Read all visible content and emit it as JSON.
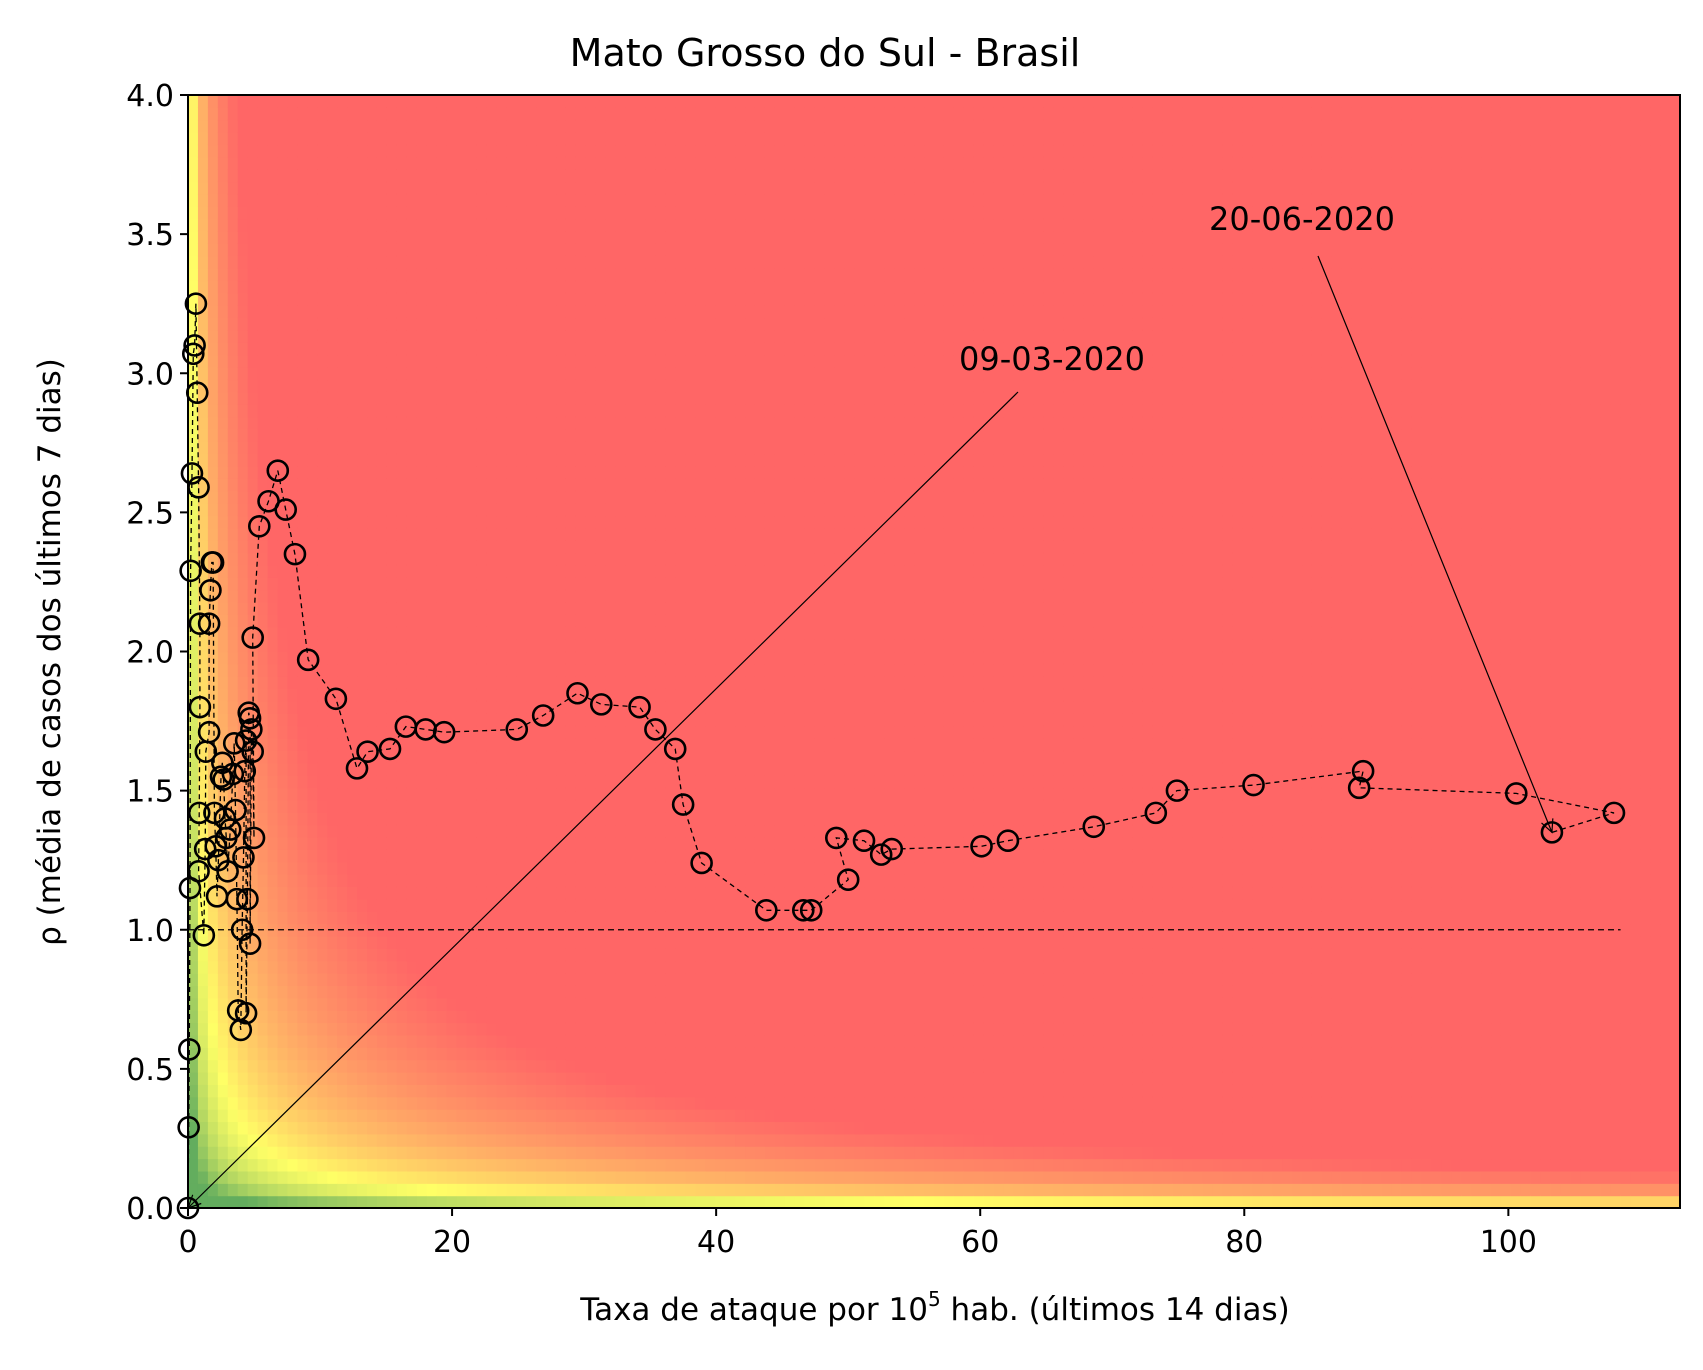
{
  "chart_data": {
    "type": "scatter",
    "title": "Mato Grosso do Sul - Brasil",
    "xlabel": {
      "prefix": "Taxa de ataque por 10",
      "sup": "5",
      "suffix": " hab. (últimos 14 dias)"
    },
    "ylabel": "ρ (média de casos dos últimos 7 dias)",
    "xlim": [
      0,
      113
    ],
    "ylim": [
      0,
      4.0
    ],
    "xticks": [
      0,
      20,
      40,
      60,
      80,
      100
    ],
    "xtick_labels": [
      "0",
      "20",
      "40",
      "60",
      "80",
      "100"
    ],
    "yticks": [
      0,
      0.5,
      1.0,
      1.5,
      2.0,
      2.5,
      3.0,
      3.5,
      4.0
    ],
    "ytick_labels": [
      "0.0",
      "0.5",
      "1.0",
      "1.5",
      "2.0",
      "2.5",
      "3.0",
      "3.5",
      "4.0"
    ],
    "background": "risk heatmap: green (low risk) → yellow → red (high risk), risk grows with x·y",
    "colors": {
      "green": "#63ad5e",
      "yellow": "#ffff66",
      "red": "#ff6666",
      "marker": "#000000"
    },
    "reference_line": {
      "y": 1.0,
      "style": "dashed"
    },
    "series": [
      {
        "marker": "open-circle",
        "line": "dashed",
        "points": [
          [
            0.0,
            0.0
          ],
          [
            0.05,
            0.29
          ],
          [
            0.1,
            0.57
          ],
          [
            0.15,
            1.15
          ],
          [
            0.2,
            2.29
          ],
          [
            0.3,
            2.64
          ],
          [
            0.4,
            3.07
          ],
          [
            0.5,
            3.1
          ],
          [
            0.6,
            3.25
          ],
          [
            0.7,
            2.93
          ],
          [
            0.8,
            2.59
          ],
          [
            0.9,
            2.1
          ],
          [
            0.9,
            1.8
          ],
          [
            0.85,
            1.42
          ],
          [
            0.8,
            1.21
          ],
          [
            1.2,
            0.98
          ],
          [
            1.3,
            1.29
          ],
          [
            1.35,
            1.64
          ],
          [
            1.6,
            1.71
          ],
          [
            1.6,
            2.1
          ],
          [
            1.7,
            2.22
          ],
          [
            1.8,
            2.32
          ],
          [
            1.9,
            2.32
          ],
          [
            2.0,
            1.42
          ],
          [
            2.1,
            1.3
          ],
          [
            2.2,
            1.12
          ],
          [
            2.3,
            1.25
          ],
          [
            2.5,
            1.55
          ],
          [
            2.6,
            1.6
          ],
          [
            2.7,
            1.54
          ],
          [
            2.8,
            1.4
          ],
          [
            2.9,
            1.33
          ],
          [
            3.0,
            1.21
          ],
          [
            3.2,
            1.36
          ],
          [
            3.4,
            1.56
          ],
          [
            3.5,
            1.67
          ],
          [
            3.6,
            1.43
          ],
          [
            3.7,
            1.11
          ],
          [
            3.8,
            0.71
          ],
          [
            4.0,
            0.64
          ],
          [
            4.1,
            1.0
          ],
          [
            4.2,
            1.26
          ],
          [
            4.3,
            1.57
          ],
          [
            4.4,
            1.68
          ],
          [
            4.4,
            0.7
          ],
          [
            4.5,
            1.11
          ],
          [
            4.6,
            1.78
          ],
          [
            4.7,
            1.76
          ],
          [
            4.7,
            0.95
          ],
          [
            4.8,
            1.72
          ],
          [
            4.9,
            1.64
          ],
          [
            5.0,
            1.33
          ],
          [
            4.9,
            2.05
          ],
          [
            5.4,
            2.45
          ],
          [
            6.1,
            2.54
          ],
          [
            6.8,
            2.65
          ],
          [
            7.4,
            2.51
          ],
          [
            8.1,
            2.35
          ],
          [
            9.1,
            1.97
          ],
          [
            11.2,
            1.83
          ],
          [
            12.8,
            1.58
          ],
          [
            13.6,
            1.64
          ],
          [
            15.3,
            1.65
          ],
          [
            16.5,
            1.73
          ],
          [
            18.0,
            1.72
          ],
          [
            19.4,
            1.71
          ],
          [
            24.9,
            1.72
          ],
          [
            26.9,
            1.77
          ],
          [
            29.5,
            1.85
          ],
          [
            31.3,
            1.81
          ],
          [
            34.2,
            1.8
          ],
          [
            35.4,
            1.72
          ],
          [
            36.9,
            1.65
          ],
          [
            37.5,
            1.45
          ],
          [
            38.9,
            1.24
          ],
          [
            43.8,
            1.07
          ],
          [
            46.6,
            1.07
          ],
          [
            47.2,
            1.07
          ],
          [
            50.0,
            1.18
          ],
          [
            49.1,
            1.33
          ],
          [
            51.2,
            1.32
          ],
          [
            52.5,
            1.27
          ],
          [
            53.3,
            1.29
          ],
          [
            60.1,
            1.3
          ],
          [
            62.1,
            1.32
          ],
          [
            68.6,
            1.37
          ],
          [
            73.3,
            1.42
          ],
          [
            74.9,
            1.5
          ],
          [
            80.7,
            1.52
          ],
          [
            89.0,
            1.57
          ],
          [
            88.7,
            1.51
          ],
          [
            100.6,
            1.49
          ],
          [
            108.0,
            1.42
          ],
          [
            103.3,
            1.35
          ]
        ]
      }
    ],
    "annotations": [
      {
        "text": "09-03-2020",
        "point": [
          0.0,
          0.0
        ]
      },
      {
        "text": "20-06-2020",
        "point": [
          103.3,
          1.35
        ]
      }
    ]
  }
}
